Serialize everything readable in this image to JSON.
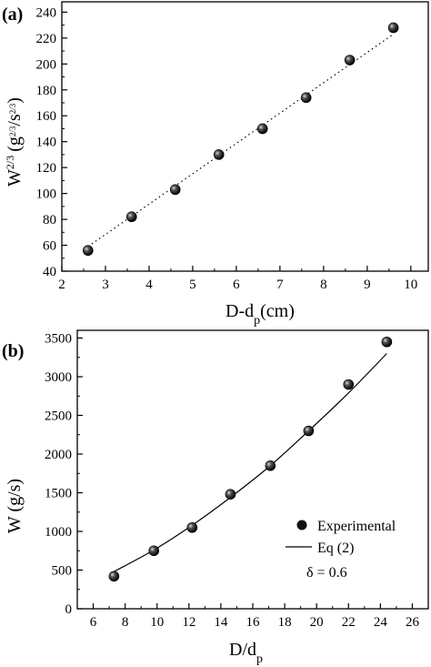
{
  "chart_data": [
    {
      "type": "scatter",
      "panel_label": "(a)",
      "xlabel_main": "D-d",
      "xlabel_sub": "p",
      "xlabel_unit": "(cm)",
      "ylabel_main": "W",
      "ylabel_sup": "2/3",
      "ylabel_unit_open": "(g",
      "ylabel_unit_sup1": "2/3",
      "ylabel_unit_mid": "/s",
      "ylabel_unit_sup2": "2/3",
      "ylabel_unit_close": ")",
      "xlim": [
        2,
        10.4
      ],
      "ylim": [
        40,
        248
      ],
      "xticks": [
        2,
        3,
        4,
        5,
        6,
        7,
        8,
        9,
        10
      ],
      "yticks": [
        40,
        60,
        80,
        100,
        120,
        140,
        160,
        180,
        200,
        220,
        240
      ],
      "series": [
        {
          "style": "markers",
          "x": [
            2.6,
            3.6,
            4.6,
            5.6,
            6.6,
            7.6,
            8.6,
            9.6
          ],
          "y": [
            56,
            82,
            103,
            130,
            150,
            174,
            203,
            228
          ]
        },
        {
          "style": "dotted-line",
          "x": [
            2.6,
            9.6
          ],
          "y": [
            59,
            223
          ]
        }
      ]
    },
    {
      "type": "scatter",
      "panel_label": "(b)",
      "xlabel_main": "D/d",
      "xlabel_sub": "p",
      "ylabel": "W (g/s)",
      "xlim": [
        5,
        27
      ],
      "ylim": [
        0,
        3600
      ],
      "xticks": [
        6,
        8,
        10,
        12,
        14,
        16,
        18,
        20,
        22,
        24,
        26
      ],
      "yticks": [
        0,
        500,
        1000,
        1500,
        2000,
        2500,
        3000,
        3500
      ],
      "legend_position": "bottom-right",
      "series": [
        {
          "name": "Experimental",
          "style": "markers",
          "x": [
            7.3,
            9.8,
            12.2,
            14.6,
            17.1,
            19.5,
            22.0,
            24.4
          ],
          "y": [
            420,
            750,
            1050,
            1480,
            1850,
            2300,
            2900,
            3450
          ]
        },
        {
          "name": "Eq (2)",
          "style": "solid-line",
          "x": [
            7.3,
            9.8,
            12.2,
            14.6,
            17.1,
            19.5,
            22.0,
            24.4
          ],
          "y": [
            480,
            760,
            1080,
            1440,
            1850,
            2300,
            2790,
            3300
          ]
        }
      ],
      "annotation": "δ = 0.6"
    }
  ]
}
